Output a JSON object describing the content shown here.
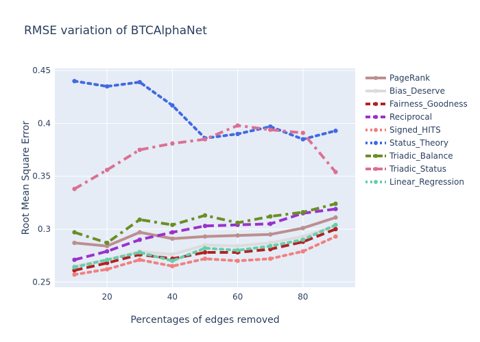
{
  "chart_data": {
    "type": "line",
    "title": "RMSE variation of BTCAlphaNet",
    "xlabel": "Percentages of edges removed",
    "ylabel": "Root Mean Square Error",
    "xlim": [
      4,
      96
    ],
    "ylim": [
      0.245,
      0.452
    ],
    "xticks": [
      20,
      40,
      60,
      80
    ],
    "yticks": [
      0.25,
      0.3,
      0.35,
      0.4,
      0.45
    ],
    "ytick_labels": [
      "0.25",
      "0.3",
      "0.35",
      "0.4",
      "0.45"
    ],
    "x": [
      10,
      20,
      30,
      40,
      50,
      60,
      70,
      80,
      90
    ],
    "legend_position": "right",
    "grid": true,
    "plot_bg": "#e5ecf6",
    "series": [
      {
        "name": "PageRank",
        "color": "#bc8f8f",
        "dash": "solid",
        "width": 4,
        "values": [
          0.287,
          0.284,
          0.297,
          0.291,
          0.293,
          0.294,
          0.295,
          0.301,
          0.311
        ]
      },
      {
        "name": "Bias_Deserve",
        "color": "#dcdcdc",
        "dash": "solid",
        "width": 4,
        "values": [
          0.265,
          0.271,
          0.279,
          0.276,
          0.285,
          0.284,
          0.287,
          0.293,
          0.303
        ]
      },
      {
        "name": "Fairness_Goodness",
        "color": "#b22222",
        "dash": "dash",
        "width": 4,
        "values": [
          0.261,
          0.268,
          0.276,
          0.272,
          0.278,
          0.278,
          0.281,
          0.288,
          0.3
        ]
      },
      {
        "name": "Reciprocal",
        "color": "#9932cc",
        "dash": "dash",
        "width": 4,
        "values": [
          0.271,
          0.279,
          0.29,
          0.297,
          0.303,
          0.304,
          0.305,
          0.315,
          0.319
        ]
      },
      {
        "name": "Signed_HITS",
        "color": "#f08080",
        "dash": "dot",
        "width": 4,
        "values": [
          0.257,
          0.262,
          0.271,
          0.265,
          0.272,
          0.27,
          0.272,
          0.279,
          0.293
        ]
      },
      {
        "name": "Status_Theory",
        "color": "#4169e1",
        "dash": "dot",
        "width": 4,
        "values": [
          0.44,
          0.435,
          0.439,
          0.417,
          0.386,
          0.39,
          0.397,
          0.385,
          0.393
        ]
      },
      {
        "name": "Triadic_Balance",
        "color": "#6b8e23",
        "dash": "dashdot",
        "width": 4,
        "values": [
          0.297,
          0.287,
          0.309,
          0.304,
          0.313,
          0.306,
          0.312,
          0.316,
          0.324
        ]
      },
      {
        "name": "Triadic_Status",
        "color": "#db7093",
        "dash": "dashdot",
        "width": 4,
        "values": [
          0.338,
          0.356,
          0.375,
          0.381,
          0.385,
          0.398,
          0.394,
          0.391,
          0.354
        ]
      },
      {
        "name": "Linear_Regression",
        "color": "#66cdaa",
        "dash": "dot",
        "width": 4,
        "values": [
          0.264,
          0.271,
          0.278,
          0.27,
          0.282,
          0.28,
          0.284,
          0.29,
          0.304
        ]
      }
    ]
  }
}
